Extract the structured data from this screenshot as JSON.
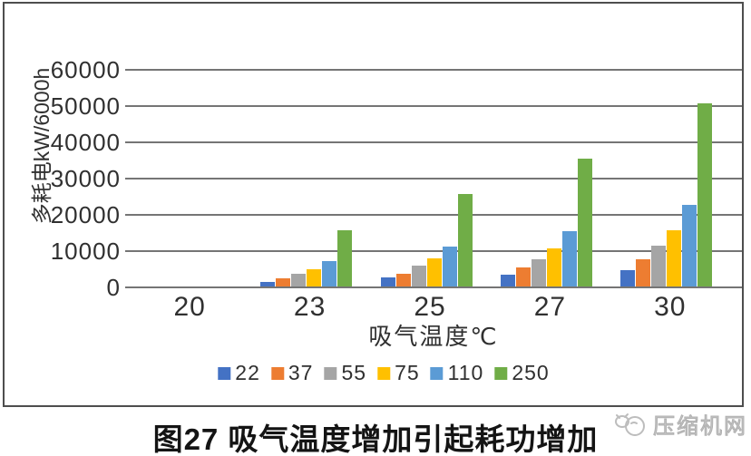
{
  "chart_data": {
    "type": "bar",
    "title": "图27 吸气温度增加引起耗功增加",
    "xlabel": "吸气温度℃",
    "ylabel": "多耗电kW/6000h",
    "categories": [
      "20",
      "23",
      "25",
      "27",
      "30"
    ],
    "series": [
      {
        "name": "22",
        "color": "#4472C4",
        "values": [
          0,
          1200,
          2400,
          3200,
          4600
        ]
      },
      {
        "name": "37",
        "color": "#ED7D31",
        "values": [
          0,
          2300,
          3600,
          5200,
          7600
        ]
      },
      {
        "name": "55",
        "color": "#A5A5A5",
        "values": [
          0,
          3500,
          5800,
          7500,
          11200
        ]
      },
      {
        "name": "75",
        "color": "#FFC000",
        "values": [
          0,
          4800,
          7700,
          10500,
          15400
        ]
      },
      {
        "name": "110",
        "color": "#5B9BD5",
        "values": [
          0,
          7000,
          11000,
          15300,
          22500
        ]
      },
      {
        "name": "250",
        "color": "#70AD47",
        "values": [
          0,
          15500,
          25600,
          35200,
          50600
        ]
      }
    ],
    "ylim": [
      0,
      60000
    ],
    "yticks": [
      0,
      10000,
      20000,
      30000,
      40000,
      50000,
      60000
    ],
    "grid": true,
    "legend_position": "bottom"
  },
  "watermark": {
    "text": "压缩机网",
    "icon": "compressor-logo-icon"
  },
  "colors": {
    "background": "#ffffff",
    "frame_border": "#4e4e4e",
    "gridline": "#757575",
    "tick_text": "#303030",
    "caption_text": "#141414",
    "watermark": "#bdbdbd"
  }
}
